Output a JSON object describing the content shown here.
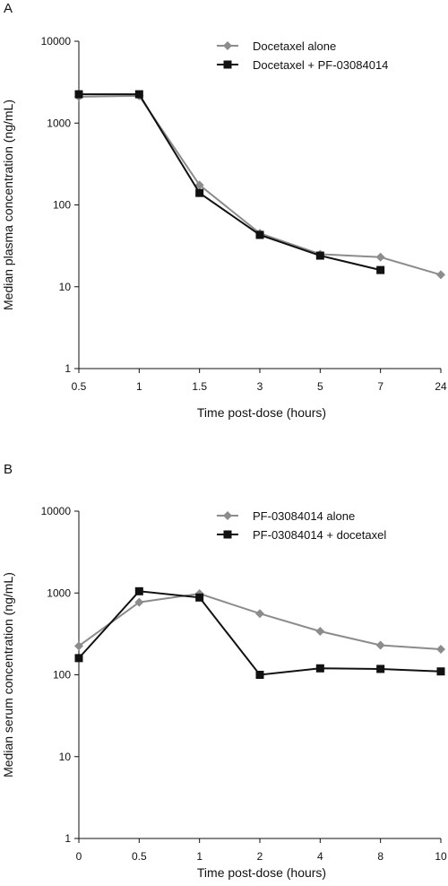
{
  "chart_data": [
    {
      "panel": "A",
      "type": "line",
      "ylabel": "Median plasma concentration (ng/mL)",
      "xlabel": "Time post-dose (hours)",
      "yscale": "log",
      "ylim": [
        1,
        10000
      ],
      "yticks": [
        "1",
        "10",
        "100",
        "1000",
        "10000"
      ],
      "categories": [
        "0.5",
        "1",
        "1.5",
        "3",
        "5",
        "7",
        "24"
      ],
      "legend_position": "top-right",
      "series": [
        {
          "name": "Docetaxel alone",
          "color": "#8c8c8c",
          "marker": "diamond",
          "values": [
            2100,
            2150,
            175,
            45,
            25,
            23,
            14
          ]
        },
        {
          "name": "Docetaxel + PF-03084014",
          "color": "#111111",
          "marker": "square",
          "values": [
            2250,
            2250,
            140,
            43,
            24,
            16,
            null
          ]
        }
      ]
    },
    {
      "panel": "B",
      "type": "line",
      "ylabel": "Median serum concentration (ng/mL)",
      "xlabel": "Time post-dose (hours)",
      "yscale": "log",
      "ylim": [
        1,
        10000
      ],
      "yticks": [
        "1",
        "10",
        "100",
        "1000",
        "10000"
      ],
      "categories": [
        "0",
        "0.5",
        "1",
        "2",
        "4",
        "8",
        "10"
      ],
      "legend_position": "top-right",
      "series": [
        {
          "name": "PF-03084014 alone",
          "color": "#8c8c8c",
          "marker": "diamond",
          "values": [
            225,
            770,
            980,
            560,
            340,
            230,
            205
          ]
        },
        {
          "name": "PF-03084014 + docetaxel",
          "color": "#111111",
          "marker": "square",
          "values": [
            160,
            1050,
            880,
            100,
            120,
            118,
            110
          ]
        }
      ]
    }
  ]
}
